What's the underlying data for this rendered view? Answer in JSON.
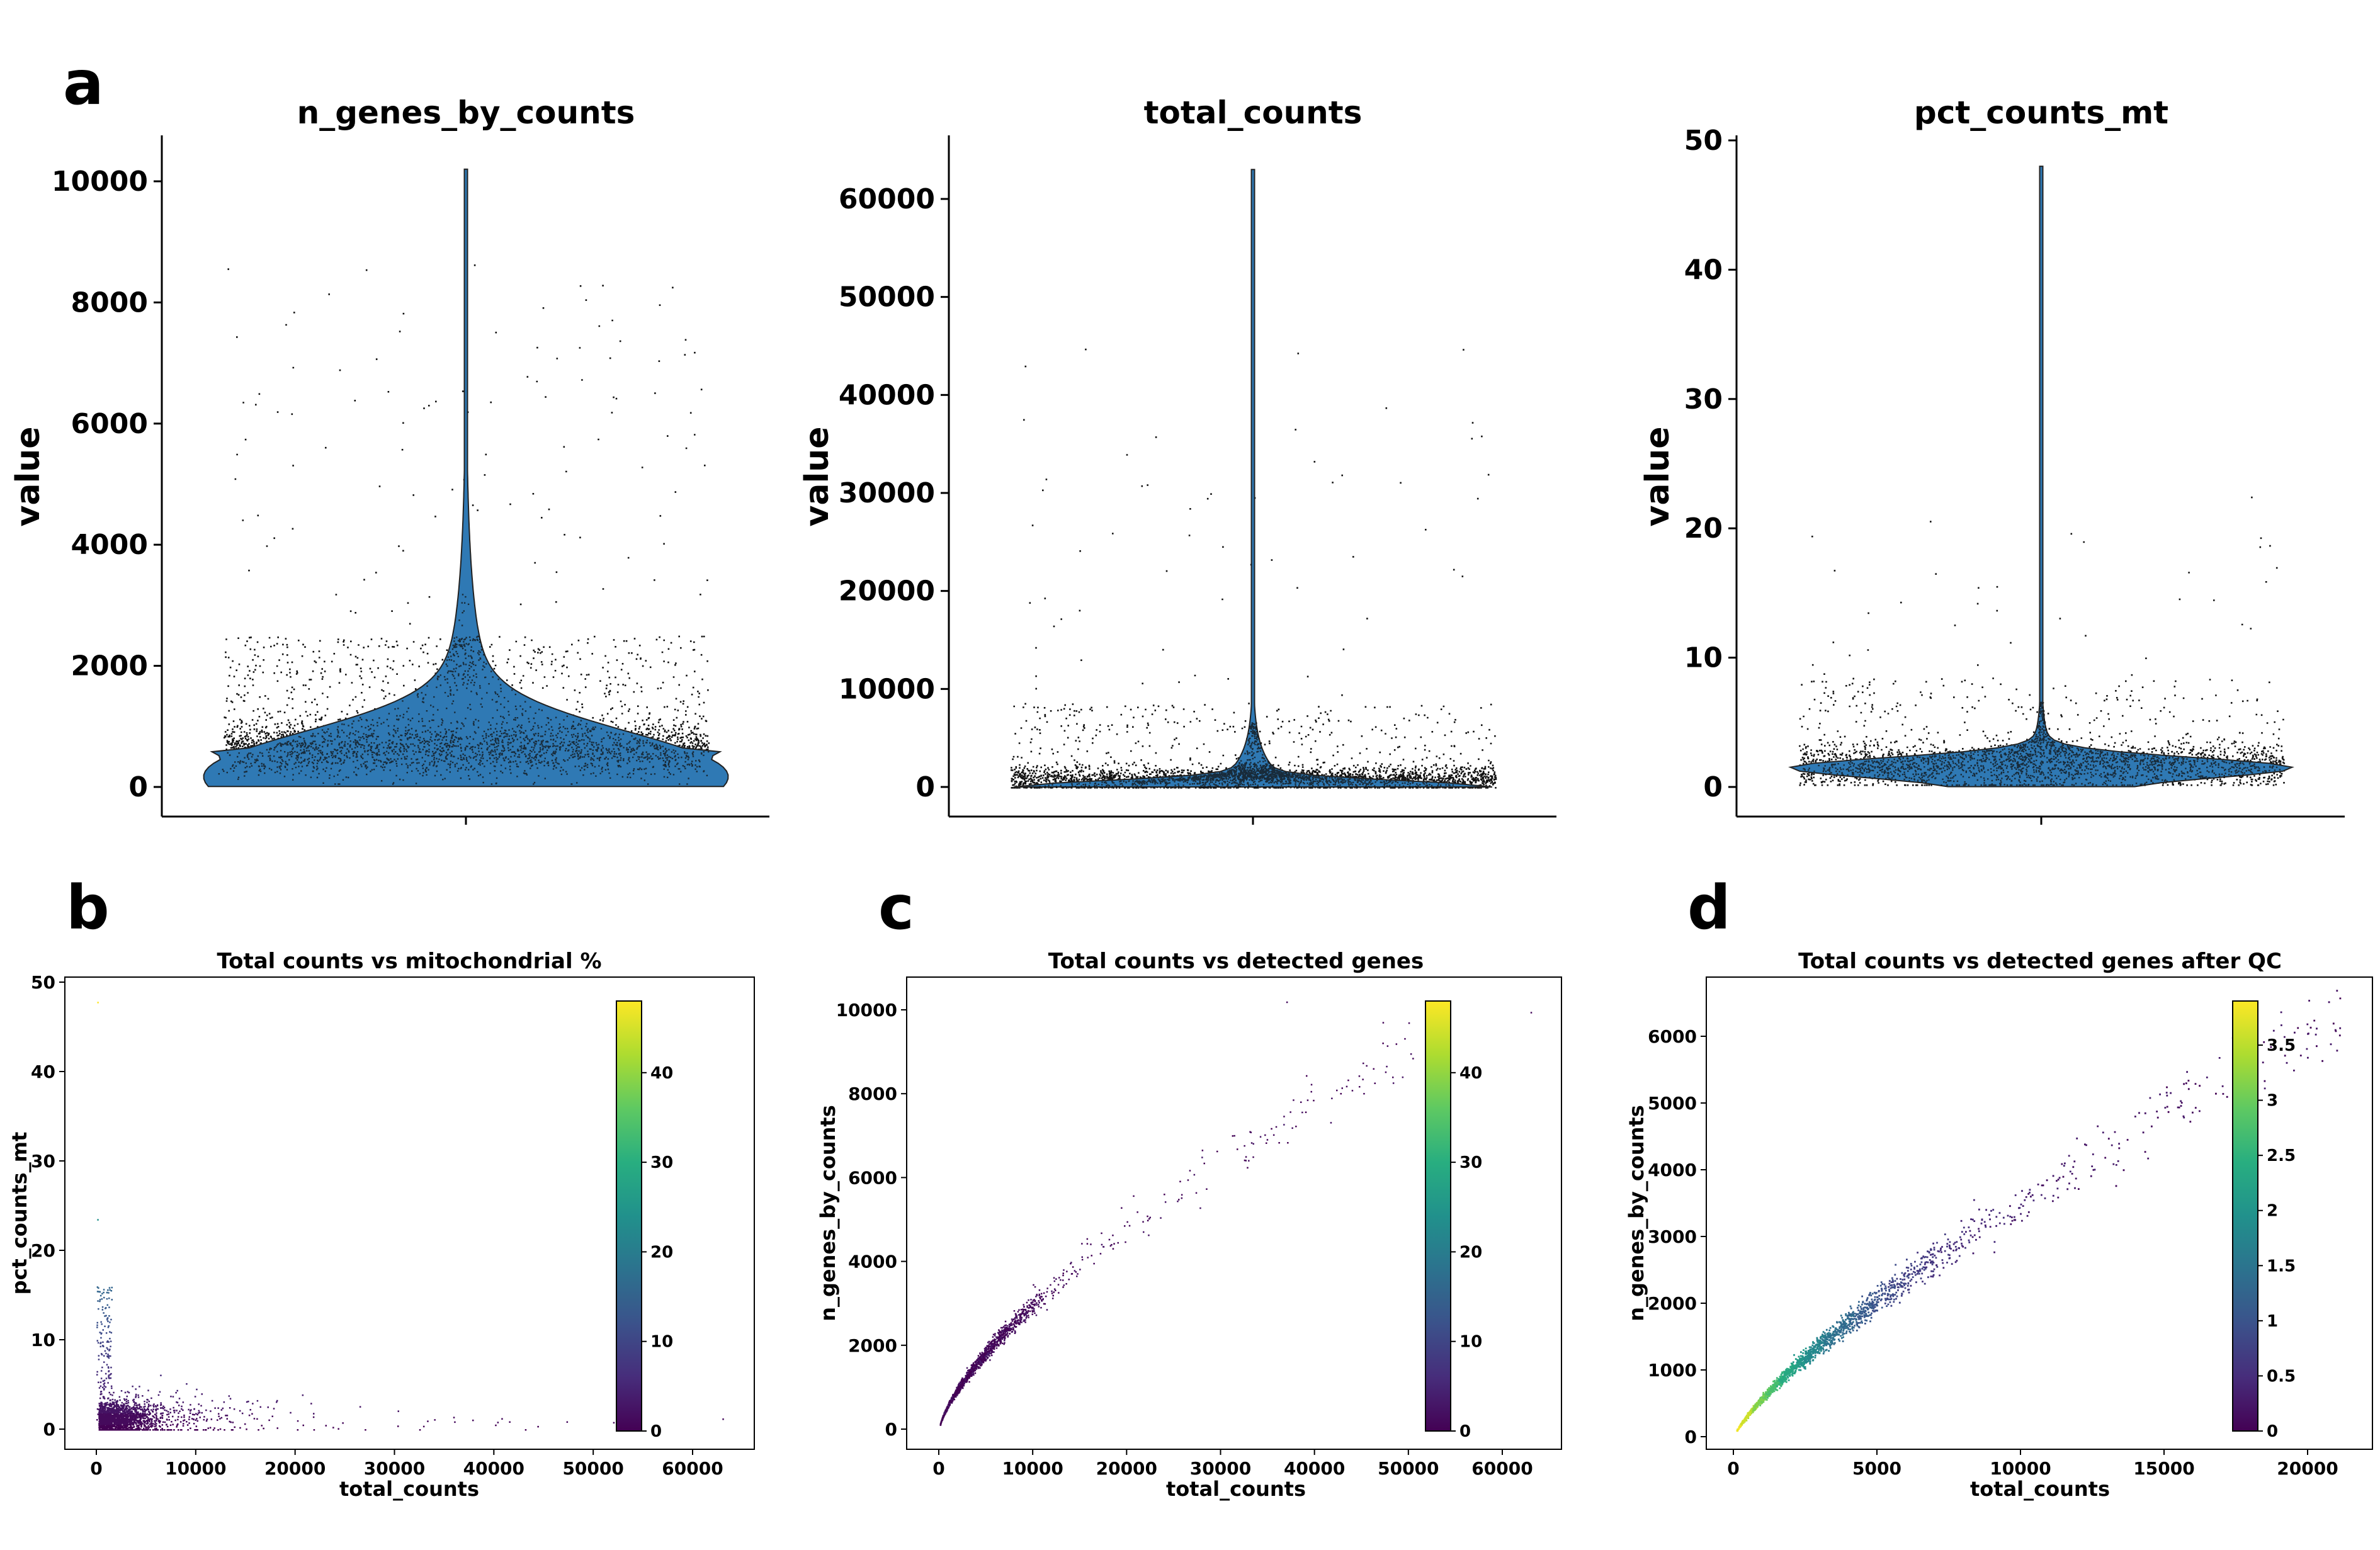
{
  "panel_labels": [
    "a",
    "b",
    "c",
    "d"
  ],
  "chart_data": [
    {
      "type": "violin",
      "panel": "a",
      "title": "n_genes_by_counts",
      "xlabel": "",
      "ylabel": "value",
      "ylim": [
        -500,
        10800
      ],
      "yticks": [
        "0",
        "2000",
        "4000",
        "6000",
        "8000",
        "10000"
      ],
      "distribution": {
        "bulk_low": 150,
        "bulk_high": 1500,
        "median": 600,
        "max": 10200,
        "points": "all cells (jitter strip)"
      },
      "violin_color": "#2f79b4",
      "point_color": "#000000"
    },
    {
      "type": "violin",
      "panel": "a",
      "title": "total_counts",
      "xlabel": "",
      "ylabel": "value",
      "ylim": [
        -3000,
        66000
      ],
      "yticks": [
        "0",
        "10000",
        "20000",
        "30000",
        "40000",
        "50000",
        "60000"
      ],
      "distribution": {
        "bulk_low": 0,
        "bulk_high": 3000,
        "median": 1200,
        "max": 63000,
        "points": "all cells (jitter strip)"
      },
      "violin_color": "#2f79b4",
      "point_color": "#000000"
    },
    {
      "type": "violin",
      "panel": "a",
      "title": "pct_counts_mt",
      "xlabel": "",
      "ylabel": "value",
      "ylim": [
        -2.5,
        50.5
      ],
      "yticks": [
        "0",
        "10",
        "20",
        "30",
        "40",
        "50"
      ],
      "distribution": {
        "bulk_low": 0.5,
        "bulk_high": 3,
        "median": 1.5,
        "max": 48,
        "points": "all cells (jitter strip)"
      },
      "violin_color": "#2f79b4",
      "point_color": "#000000"
    },
    {
      "type": "scatter",
      "panel": "b",
      "title": "Total counts vs mitochondrial %",
      "xlabel": "total_counts",
      "ylabel": "pct_counts_mt",
      "xlim": [
        -3000,
        66000
      ],
      "ylim": [
        -2.5,
        50.5
      ],
      "xticks": [
        "0",
        "10000",
        "20000",
        "30000",
        "40000",
        "50000",
        "60000"
      ],
      "yticks": [
        "0",
        "10",
        "20",
        "30",
        "40",
        "50"
      ],
      "color_by": "pct_counts_mt",
      "colorbar": {
        "range": [
          0,
          48
        ],
        "ticks": [
          "0",
          "10",
          "20",
          "30",
          "40"
        ]
      }
    },
    {
      "type": "scatter",
      "panel": "c",
      "title": "Total counts vs detected genes",
      "xlabel": "total_counts",
      "ylabel": "n_genes_by_counts",
      "xlim": [
        -3000,
        66000
      ],
      "ylim": [
        -500,
        10800
      ],
      "xticks": [
        "0",
        "10000",
        "20000",
        "30000",
        "40000",
        "50000",
        "60000"
      ],
      "yticks": [
        "0",
        "2000",
        "4000",
        "6000",
        "8000",
        "10000"
      ],
      "color_by": "pct_counts_mt",
      "colorbar": {
        "range": [
          0,
          48
        ],
        "ticks": [
          "0",
          "10",
          "20",
          "30",
          "40"
        ]
      }
    },
    {
      "type": "scatter",
      "panel": "d",
      "title": "Total counts vs detected genes after QC",
      "xlabel": "total_counts",
      "ylabel": "n_genes_by_counts",
      "xlim": [
        -1000,
        22000
      ],
      "ylim": [
        -200,
        6800
      ],
      "xticks": [
        "0",
        "5000",
        "10000",
        "15000",
        "20000"
      ],
      "yticks": [
        "0",
        "1000",
        "2000",
        "3000",
        "4000",
        "5000",
        "6000"
      ],
      "color_by": "density",
      "colorbar": {
        "range": [
          0,
          3.9
        ],
        "ticks": [
          "0",
          "0.5",
          "1",
          "1.5",
          "2",
          "2.5",
          "3",
          "3.5"
        ]
      }
    }
  ]
}
